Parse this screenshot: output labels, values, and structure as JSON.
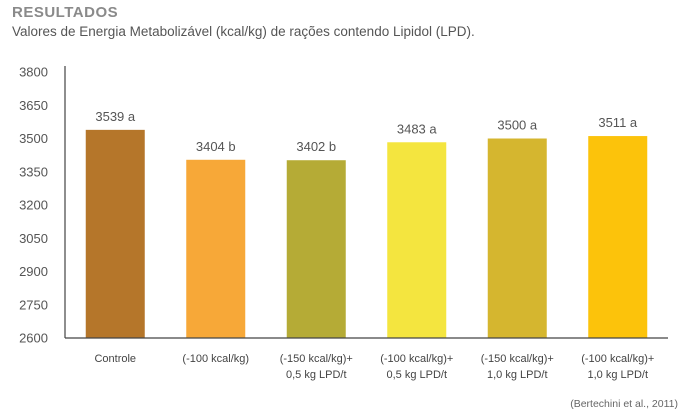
{
  "header": {
    "title": "RESULTADOS",
    "subtitle": "Valores de Energia Metabolizável (kcal/kg) de rações contendo Lipidol (LPD)."
  },
  "source": "(Bertechini et al., 2011)",
  "colors": {
    "axis": "#444444",
    "bars": [
      "#b5762a",
      "#f7a838",
      "#b5ab36",
      "#f4e53f",
      "#d5b62f",
      "#fcc30b"
    ]
  },
  "chart_data": {
    "type": "bar",
    "title": "Valores de Energia Metabolizável (kcal/kg) de rações contendo Lipidol (LPD).",
    "xlabel": "",
    "ylabel": "",
    "ylim": [
      2600,
      3800
    ],
    "yticks": [
      2600,
      2750,
      2900,
      3050,
      3200,
      3350,
      3500,
      3650,
      3800
    ],
    "grid": false,
    "categories": [
      [
        "Controle"
      ],
      [
        "(-100 kcal/kg)"
      ],
      [
        "(-150 kcal/kg)+",
        "0,5 kg LPD/t"
      ],
      [
        "(-100 kcal/kg)+",
        "0,5 kg LPD/t"
      ],
      [
        "(-150 kcal/kg)+",
        "1,0 kg LPD/t"
      ],
      [
        "(-100 kcal/kg)+",
        "1,0 kg LPD/t"
      ]
    ],
    "values": [
      3539,
      3404,
      3402,
      3483,
      3500,
      3511
    ],
    "data_labels": [
      "3539 a",
      "3404 b",
      "3402 b",
      "3483 a",
      "3500 a",
      "3511 a"
    ]
  }
}
